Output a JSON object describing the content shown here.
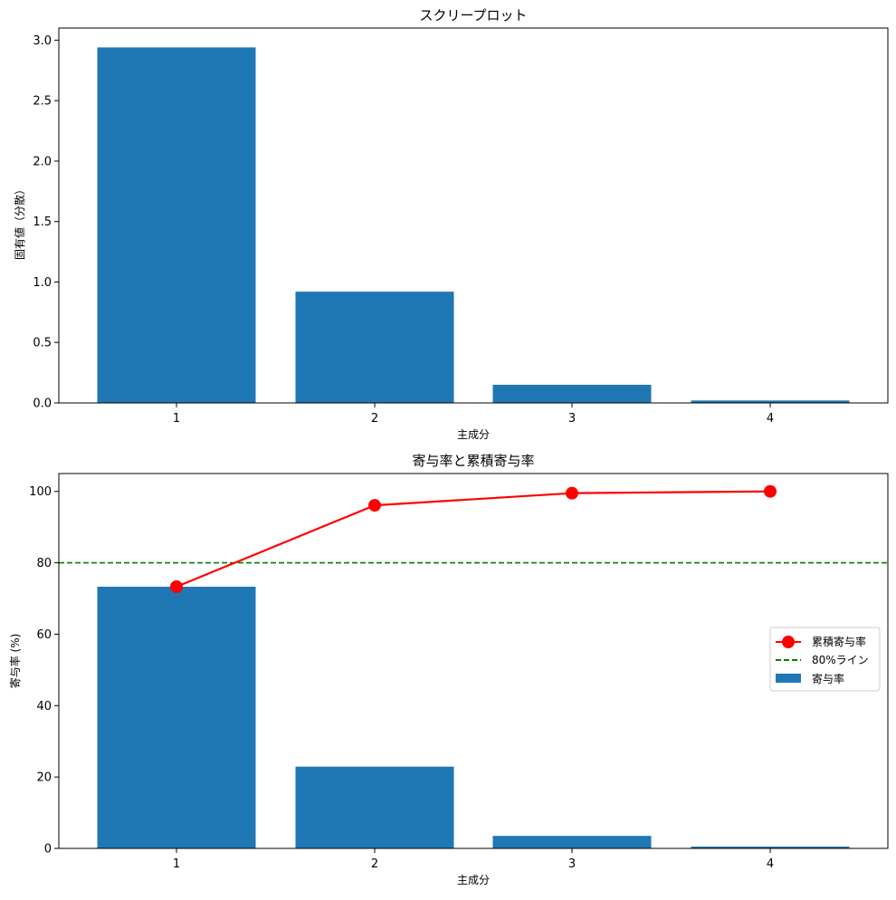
{
  "chart_data": [
    {
      "type": "bar",
      "title": "スクリープロット",
      "xlabel": "主成分",
      "ylabel": "固有値（分散）",
      "categories": [
        "1",
        "2",
        "3",
        "4"
      ],
      "values": [
        2.94,
        0.92,
        0.15,
        0.02
      ],
      "ylim": [
        0,
        3.1
      ],
      "yticks": [
        "0.0",
        "0.5",
        "1.0",
        "1.5",
        "2.0",
        "2.5",
        "3.0"
      ],
      "ytick_values": [
        0,
        0.5,
        1.0,
        1.5,
        2.0,
        2.5,
        3.0
      ],
      "bar_color": "#1f77b4",
      "grid": false
    },
    {
      "type": "bar",
      "title": "寄与率と累積寄与率",
      "xlabel": "主成分",
      "ylabel": "寄与率 (%)",
      "categories": [
        "1",
        "2",
        "3",
        "4"
      ],
      "ylim": [
        0,
        105
      ],
      "yticks": [
        "0",
        "20",
        "40",
        "60",
        "80",
        "100"
      ],
      "ytick_values": [
        0,
        20,
        40,
        60,
        80,
        100
      ],
      "grid": false,
      "legend_position": "center-right",
      "series": [
        {
          "name": "寄与率",
          "type": "bar",
          "values": [
            73.3,
            22.9,
            3.5,
            0.5
          ],
          "color": "#1f77b4"
        },
        {
          "name": "累積寄与率",
          "type": "line",
          "values": [
            73.3,
            96.1,
            99.5,
            100.0
          ],
          "color": "#ff0000",
          "marker": "circle"
        }
      ],
      "reference_lines": [
        {
          "name": "80%ライン",
          "y": 80,
          "color": "#008000",
          "style": "dashed"
        }
      ]
    }
  ]
}
